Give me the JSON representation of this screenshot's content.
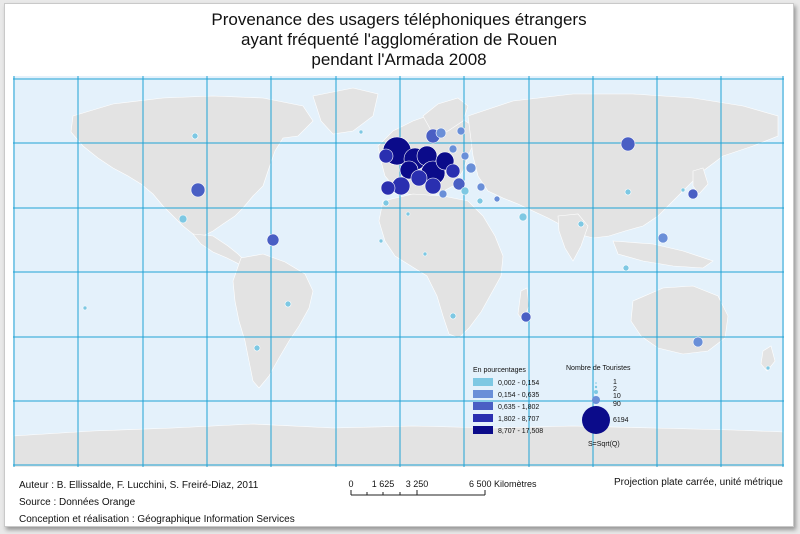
{
  "title": {
    "line1": "Provenance des usagers téléphoniques étrangers",
    "line2": "ayant fréquenté l'agglomération de Rouen",
    "line3": "pendant l'Armada 2008"
  },
  "legend_pct": {
    "heading": "En pourcentages",
    "classes": [
      {
        "label": "0,002 - 0,154",
        "color": "#7ec8e3"
      },
      {
        "label": "0,154 - 0,635",
        "color": "#6a8fd8"
      },
      {
        "label": "0,635 - 1,802",
        "color": "#4a5fc4"
      },
      {
        "label": "1,802 - 8,707",
        "color": "#2a2fb0"
      },
      {
        "label": "8,707 - 17,508",
        "color": "#0b0b8a"
      }
    ]
  },
  "legend_size": {
    "heading": "Nombre de Touristes",
    "values": [
      "1",
      "2",
      "10",
      "90",
      "6194"
    ],
    "formula": "S=Sqrt(Q)"
  },
  "scale": {
    "ticks": [
      "0",
      "1 625",
      "3 250",
      "6 500 Kilomètres"
    ]
  },
  "footer": {
    "author": "Auteur : B. Ellissalde, F. Lucchini, S. Freiré-Diaz, 2011",
    "source": "Source : Données Orange",
    "credits": "Conception et réalisation : Géographique Information Services",
    "projection": "Projection plate carrée, unité métrique"
  },
  "colors": {
    "ocean": "#e4f1fb",
    "land": "#e3e3e3",
    "grid": "#1fa3d6"
  }
}
